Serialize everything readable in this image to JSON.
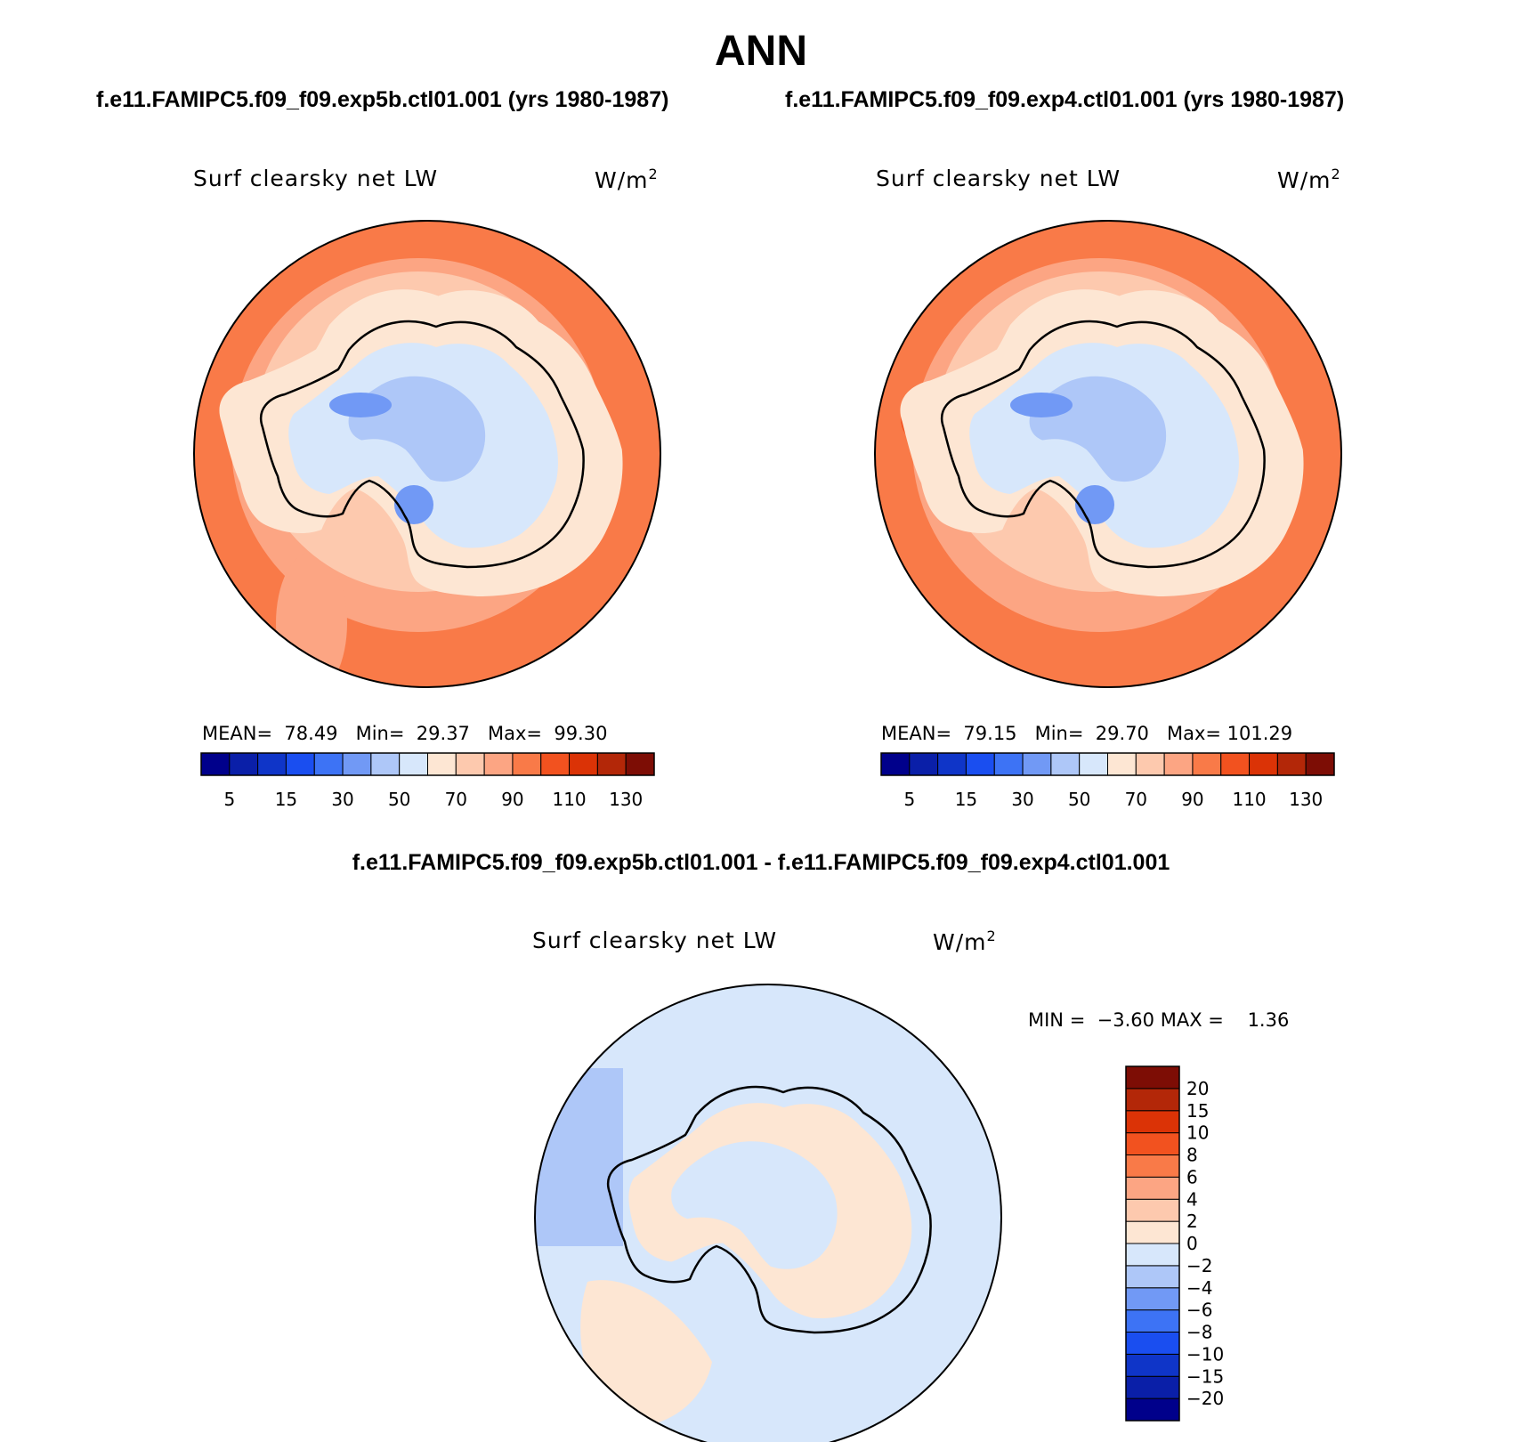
{
  "title": "ANN",
  "panels": [
    {
      "run_title": "f.e11.FAMIPC5.f09_f09.exp5b.ctl01.001 (yrs 1980-1987)",
      "variable": "Surf clearsky net LW",
      "units_base": "W/m",
      "units_exp": "2",
      "stats": {
        "mean_label": "MEAN=",
        "mean": "78.49",
        "min_label": "Min=",
        "min": "29.37",
        "max_label": "Max=",
        "max": "99.30"
      }
    },
    {
      "run_title": "f.e11.FAMIPC5.f09_f09.exp4.ctl01.001 (yrs 1980-1987)",
      "variable": "Surf clearsky net LW",
      "units_base": "W/m",
      "units_exp": "2",
      "stats": {
        "mean_label": "MEAN=",
        "mean": "79.15",
        "min_label": "Min=",
        "min": "29.70",
        "max_label": "Max=",
        "max": "101.29"
      }
    }
  ],
  "difference": {
    "title": "f.e11.FAMIPC5.f09_f09.exp5b.ctl01.001 - f.e11.FAMIPC5.f09_f09.exp4.ctl01.001",
    "variable": "Surf clearsky net LW",
    "units_base": "W/m",
    "units_exp": "2",
    "stats": {
      "min_label": "MIN =",
      "min": "−3.60",
      "max_label": "MAX =",
      "max": "1.36"
    }
  },
  "colorbar_abs": {
    "colors": [
      "#00008b",
      "#0a1fa8",
      "#0f35c8",
      "#1a4ef0",
      "#3d73f5",
      "#7199f5",
      "#aec7f8",
      "#d7e7fb",
      "#fde6d3",
      "#fdc9ae",
      "#fca583",
      "#f97a48",
      "#f2521f",
      "#db3306",
      "#b32708",
      "#7d0d05"
    ],
    "labels": [
      "5",
      "15",
      "30",
      "50",
      "70",
      "90",
      "110",
      "130"
    ]
  },
  "colorbar_diff": {
    "colors": [
      "#00008b",
      "#0a1fa8",
      "#0f35c8",
      "#1a4ef0",
      "#3d73f5",
      "#7199f5",
      "#aec7f8",
      "#d7e7fb",
      "#fde6d3",
      "#fdc9ae",
      "#fca583",
      "#f97a48",
      "#f2521f",
      "#db3306",
      "#b32708",
      "#7d0d05"
    ],
    "labels": [
      "20",
      "15",
      "10",
      "8",
      "6",
      "4",
      "2",
      "0",
      "−2",
      "−4",
      "−6",
      "−8",
      "−10",
      "−15",
      "−20"
    ]
  },
  "map_colors": {
    "ocean_warm": "#f97a48",
    "ring_light": "#fca583",
    "ring_pale": "#fdc9ae",
    "coast_cream": "#fde6d3",
    "ice_light": "#d7e7fb",
    "ice_mid": "#aec7f8",
    "ice_blue": "#7199f5",
    "diff_background": "#d7e7fb",
    "diff_positive": "#fde6d3",
    "diff_negative": "#aec7f8"
  }
}
